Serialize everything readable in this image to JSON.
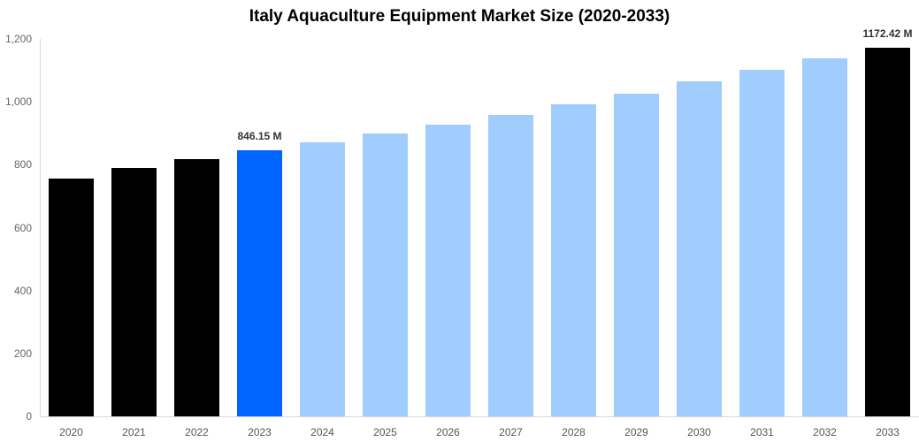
{
  "chart_data": {
    "type": "bar",
    "title": "Italy Aquaculture Equipment Market Size (2020-2033)",
    "xlabel": "",
    "ylabel": "",
    "ylim": [
      0,
      1200
    ],
    "yticks": [
      0,
      200,
      400,
      600,
      800,
      1000,
      1200
    ],
    "ytick_labels": [
      "0",
      "200",
      "400",
      "600",
      "800",
      "1,000",
      "1,200"
    ],
    "grid": false,
    "categories": [
      "2020",
      "2021",
      "2022",
      "2023",
      "2024",
      "2025",
      "2026",
      "2027",
      "2028",
      "2029",
      "2030",
      "2031",
      "2032",
      "2033"
    ],
    "values": [
      756,
      789,
      817,
      846.15,
      871,
      899,
      927,
      958,
      992,
      1025,
      1065,
      1101,
      1138,
      1172.42
    ],
    "bar_colors": [
      "#000000",
      "#000000",
      "#000000",
      "#0066ff",
      "#a0cdfd",
      "#a0cdfd",
      "#a0cdfd",
      "#a0cdfd",
      "#a0cdfd",
      "#a0cdfd",
      "#a0cdfd",
      "#a0cdfd",
      "#a0cdfd",
      "#000000"
    ],
    "annotations": [
      {
        "category": "2023",
        "text": "846.15 M"
      },
      {
        "category": "2033",
        "text": "1172.42 M"
      }
    ]
  }
}
